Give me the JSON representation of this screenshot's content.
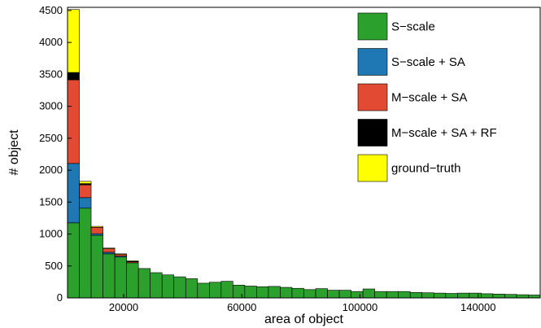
{
  "chart_data": {
    "type": "bar",
    "stacked": true,
    "title": "",
    "xlabel": "area of object",
    "ylabel": "# object",
    "xlim": [
      1000,
      161000
    ],
    "ylim": [
      0,
      4550
    ],
    "x_ticks": [
      20000,
      60000,
      100000,
      140000
    ],
    "x_tick_labels": [
      "20000",
      "60000",
      "100000",
      "140000"
    ],
    "y_ticks": [
      0,
      500,
      1000,
      1500,
      2000,
      2500,
      3000,
      3500,
      4000,
      4500
    ],
    "y_tick_labels": [
      "0",
      "500",
      "1000",
      "1500",
      "2000",
      "2500",
      "3000",
      "3500",
      "4000",
      "4500"
    ],
    "bin_width": 4000,
    "bin_starts": [
      1000,
      5000,
      9000,
      13000,
      17000,
      21000,
      25000,
      29000,
      33000,
      37000,
      41000,
      45000,
      49000,
      53000,
      57000,
      61000,
      65000,
      69000,
      73000,
      77000,
      81000,
      85000,
      89000,
      93000,
      97000,
      101000,
      105000,
      109000,
      113000,
      117000,
      121000,
      125000,
      129000,
      133000,
      137000,
      141000,
      145000,
      149000,
      153000,
      157000
    ],
    "legend_position": "top-right",
    "grid": false,
    "series": [
      {
        "name": "S−scale",
        "color": "#2ca02c",
        "values": [
          1175,
          1405,
          980,
          690,
          640,
          550,
          460,
          395,
          360,
          330,
          300,
          230,
          245,
          260,
          200,
          185,
          175,
          180,
          165,
          150,
          130,
          145,
          120,
          120,
          100,
          140,
          100,
          100,
          100,
          85,
          80,
          75,
          70,
          75,
          75,
          65,
          60,
          55,
          50,
          45
        ]
      },
      {
        "name": "S−scale + SA",
        "color": "#1f77b4",
        "values": [
          930,
          165,
          25,
          25,
          15,
          0,
          0,
          0,
          0,
          0,
          0,
          0,
          0,
          0,
          0,
          0,
          0,
          0,
          0,
          0,
          0,
          0,
          0,
          0,
          0,
          0,
          0,
          0,
          0,
          0,
          0,
          0,
          0,
          0,
          0,
          0,
          0,
          0,
          0,
          0
        ]
      },
      {
        "name": "M−scale + SA",
        "color": "#e34a33",
        "values": [
          1310,
          200,
          100,
          55,
          25,
          15,
          0,
          0,
          0,
          0,
          0,
          0,
          0,
          0,
          0,
          0,
          0,
          0,
          0,
          0,
          0,
          0,
          0,
          0,
          0,
          0,
          0,
          0,
          0,
          0,
          0,
          0,
          0,
          0,
          0,
          0,
          0,
          0,
          0,
          0
        ]
      },
      {
        "name": "M−scale + SA + RF",
        "color": "#000000",
        "values": [
          115,
          20,
          0,
          0,
          0,
          5,
          0,
          0,
          0,
          0,
          0,
          0,
          0,
          0,
          0,
          0,
          0,
          0,
          0,
          0,
          0,
          0,
          0,
          0,
          0,
          0,
          0,
          0,
          0,
          0,
          0,
          0,
          0,
          0,
          0,
          0,
          0,
          0,
          0,
          0
        ]
      },
      {
        "name": "ground−truth",
        "color": "#ffff00",
        "values": [
          985,
          35,
          15,
          10,
          10,
          10,
          0,
          0,
          0,
          0,
          0,
          0,
          0,
          0,
          0,
          0,
          0,
          0,
          0,
          0,
          0,
          0,
          0,
          0,
          0,
          0,
          0,
          0,
          0,
          0,
          0,
          0,
          0,
          0,
          0,
          0,
          0,
          0,
          0,
          0
        ]
      }
    ]
  }
}
